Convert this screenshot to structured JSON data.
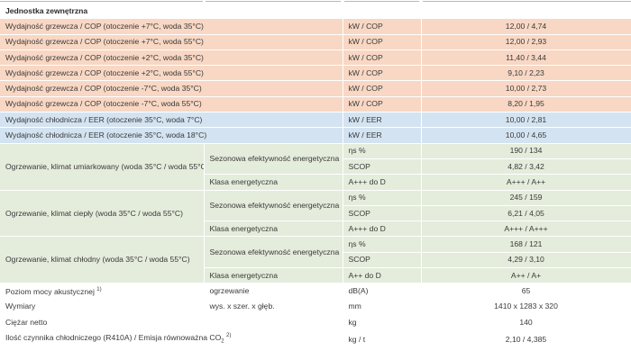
{
  "header": {
    "title": "Jednostka zewnętrzna"
  },
  "heating_rows": [
    {
      "label": "Wydajność grzewcza / COP (otoczenie +7°C, woda 35°C)",
      "unit": "kW / COP",
      "value": "12,00 / 4,74"
    },
    {
      "label": "Wydajność grzewcza / COP (otoczenie +7°C, woda 55°C)",
      "unit": "kW / COP",
      "value": "12,00 / 2,93"
    },
    {
      "label": "Wydajność grzewcza / COP (otoczenie +2°C, woda 35°C)",
      "unit": "kW / COP",
      "value": "11,40 / 3,44"
    },
    {
      "label": "Wydajność grzewcza / COP (otoczenie +2°C, woda 55°C)",
      "unit": "kW / COP",
      "value": "9,10 / 2,23"
    },
    {
      "label": "Wydajność grzewcza / COP (otoczenie -7°C, woda 35°C)",
      "unit": "kW / COP",
      "value": "10,00 / 2,73"
    },
    {
      "label": "Wydajność grzewcza / COP (otoczenie -7°C, woda 55°C)",
      "unit": "kW / COP",
      "value": "8,20 / 1,95"
    }
  ],
  "cooling_rows": [
    {
      "label": "Wydajność chłodnicza / EER (otoczenie 35°C, woda 7°C)",
      "unit": "kW / EER",
      "value": "10,00 / 2,81"
    },
    {
      "label": "Wydajność chłodnicza / EER (otoczenie 35°C, woda 18°C)",
      "unit": "kW / EER",
      "value": "10,00 / 4,65"
    }
  ],
  "climates": [
    {
      "label": "Ogrzewanie, klimat umiarkowany (woda 35°C / woda 55°C)",
      "seasonal_label": "Sezonowa efektywność energetyczna",
      "eta_unit": "ηs %",
      "eta_value": "190 / 134",
      "scop_unit": "SCOP",
      "scop_value": "4,82 / 3,42",
      "class_label": "Klasa energetyczna",
      "class_unit": "A+++ do D",
      "class_value": "A+++ / A++"
    },
    {
      "label": "Ogrzewanie, klimat ciepły (woda 35°C / woda 55°C)",
      "seasonal_label": "Sezonowa efektywność energetyczna",
      "eta_unit": "ηs %",
      "eta_value": "245 / 159",
      "scop_unit": "SCOP",
      "scop_value": "6,21 / 4,05",
      "class_label": "Klasa energetyczna",
      "class_unit": "A+++ do D",
      "class_value": "A+++ / A+++"
    },
    {
      "label": "Ogrzewanie, klimat chłodny (woda 35°C / woda 55°C)",
      "seasonal_label": "Sezonowa efektywność energetyczna",
      "eta_unit": "ηs %",
      "eta_value": "168 / 121",
      "scop_unit": "SCOP",
      "scop_value": "4,29 / 3,10",
      "class_label": "Klasa energetyczna",
      "class_unit": "A++ do D",
      "class_value": "A++ / A+"
    }
  ],
  "sound": {
    "label": "Poziom mocy akustycznej",
    "footnote": "1)",
    "sub": "ogrzewanie",
    "unit": "dB(A)",
    "value": "65"
  },
  "dimensions": {
    "label": "Wymiary",
    "sub": "wys. x szer. x głęb.",
    "unit": "mm",
    "value": "1410 x 1283 x 320"
  },
  "weight": {
    "label": "Ciężar netto",
    "unit": "kg",
    "value": "140"
  },
  "refrigerant": {
    "label": "Ilość czynnika chłodniczego (R410A) / Emisja równoważna CO",
    "subscript": "2",
    "footnote": "2)",
    "unit": "kg / t",
    "value": "2,10 / 4,385"
  }
}
